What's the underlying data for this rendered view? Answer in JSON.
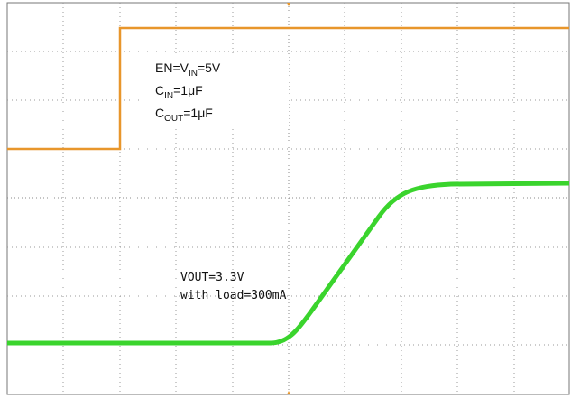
{
  "annotations": {
    "en": [
      "EN=V",
      "IN",
      "=5V"
    ],
    "cin": [
      "C",
      "IN",
      "=1μF"
    ],
    "cout": [
      "C",
      "OUT",
      "=1μF"
    ],
    "vout": "VOUT=3.3V",
    "load": "with load=300mA"
  }
}
